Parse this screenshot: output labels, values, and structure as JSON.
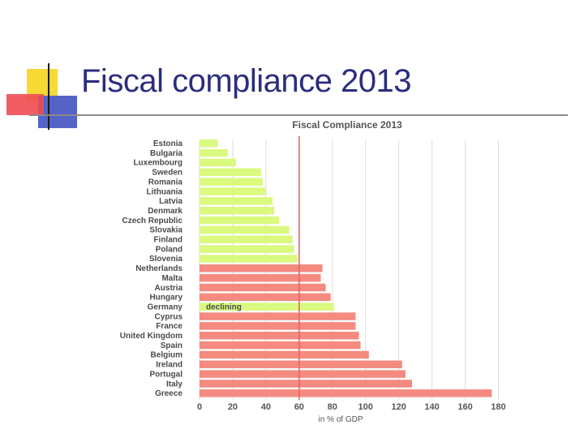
{
  "slide": {
    "title": "Fiscal compliance 2013"
  },
  "colors": {
    "title": "#2b2d7e",
    "compliant_bar": "#d9fa7e",
    "noncompliant_bar": "#f58a80",
    "threshold_line": "#e8636a",
    "grid": "#dddddd",
    "deco_yellow": "#f6d935",
    "deco_blue": "#5563c9",
    "deco_red": "#f04b52",
    "rule": "#8a8a8a"
  },
  "chart_data": {
    "type": "bar",
    "orientation": "horizontal",
    "title": "Fiscal Compliance 2013",
    "xlabel": "in % of GDP",
    "xlim": [
      0,
      180
    ],
    "xticks": [
      0,
      20,
      40,
      60,
      80,
      100,
      120,
      140,
      160,
      180
    ],
    "threshold": 60,
    "grid": true,
    "categories": [
      "Estonia",
      "Bulgaria",
      "Luxembourg",
      "Sweden",
      "Romania",
      "Lithuania",
      "Latvia",
      "Denmark",
      "Czech Republic",
      "Slovakia",
      "Finland",
      "Poland",
      "Slovenia",
      "Netherlands",
      "Malta",
      "Austria",
      "Hungary",
      "Germany",
      "Cyprus",
      "France",
      "United Kingdom",
      "Spain",
      "Belgium",
      "Ireland",
      "Portugal",
      "Italy",
      "Greece"
    ],
    "values": [
      11,
      17,
      22,
      37,
      38,
      40,
      44,
      45,
      48,
      54,
      56,
      57,
      59,
      74,
      73,
      76,
      79,
      81,
      94,
      94,
      96,
      97,
      102,
      122,
      124,
      128,
      176
    ],
    "compliance": [
      "compliant",
      "compliant",
      "compliant",
      "compliant",
      "compliant",
      "compliant",
      "compliant",
      "compliant",
      "compliant",
      "compliant",
      "compliant",
      "compliant",
      "compliant",
      "noncompliant",
      "noncompliant",
      "noncompliant",
      "noncompliant",
      "compliant",
      "noncompliant",
      "noncompliant",
      "noncompliant",
      "noncompliant",
      "noncompliant",
      "noncompliant",
      "noncompliant",
      "noncompliant",
      "noncompliant"
    ],
    "annotations": [
      {
        "category": "Germany",
        "text": "declining"
      }
    ]
  }
}
